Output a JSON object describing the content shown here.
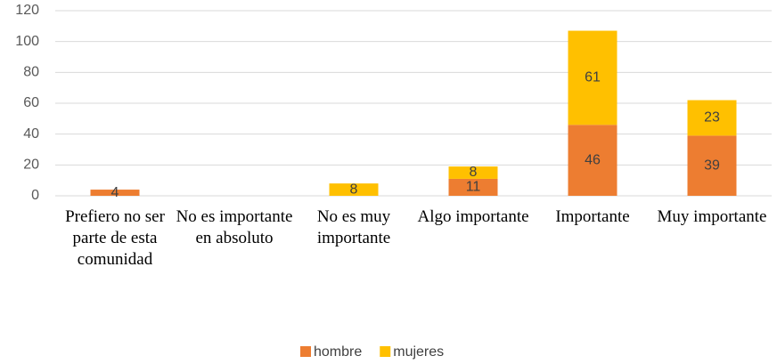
{
  "chart_data": {
    "type": "stacked_bar",
    "categories": [
      "Prefiero no ser parte de esta comunidad",
      "No es importante en absoluto",
      "No es muy importante",
      "Algo importante",
      "Importante",
      "Muy importante"
    ],
    "series": [
      {
        "name": "hombre",
        "color": "#ed7d31",
        "values": [
          4,
          null,
          null,
          11,
          46,
          39
        ]
      },
      {
        "name": "mujeres",
        "color": "#ffc000",
        "values": [
          null,
          null,
          8,
          8,
          61,
          23
        ]
      }
    ],
    "ylim": [
      0,
      120
    ],
    "yticks": [
      0,
      20,
      40,
      60,
      80,
      100,
      120
    ],
    "grid": true,
    "legend": "bottom"
  }
}
